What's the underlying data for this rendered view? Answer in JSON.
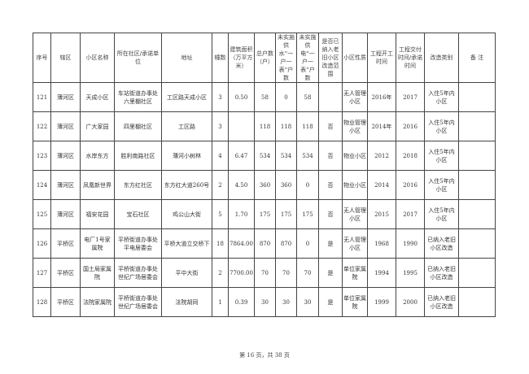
{
  "table": {
    "headers": [
      "序号",
      "辖区",
      "小区名称",
      "所在社区/承诺单位",
      "地址",
      "幢数",
      "建筑面积（万平方米）",
      "总户数（户）",
      "未实施供水“一户一表”户数",
      "未实施供电“一户一表”户数",
      "是否已纳入老旧小区改造范围",
      "小区性质",
      "工程开工时间",
      "工程交付时间/承诺时间",
      "改造类别",
      "备 注"
    ],
    "rows": [
      [
        "121",
        "薄河区",
        "天成小区",
        "车站街道办事处六里棚社区",
        "工区路天成小区",
        "3",
        "0.50",
        "58",
        "0",
        "58",
        "",
        "无人管理小区",
        "2016年",
        "2017",
        "入住5年内小区",
        ""
      ],
      [
        "122",
        "薄河区",
        "广大家园",
        "四里棚社区",
        "工区路",
        "3",
        "",
        "118",
        "118",
        "118",
        "否",
        "物业管理小区",
        "2014年",
        "2016",
        "入住5年内小区",
        ""
      ],
      [
        "123",
        "薄河区",
        "水岸东方",
        "胜利南路社区",
        "薄河小树林",
        "4",
        "6.47",
        "534",
        "534",
        "534",
        "否",
        "物业小区",
        "2012",
        "2018",
        "入住5年内小区",
        ""
      ],
      [
        "124",
        "薄河区",
        "凤凰新世界",
        "东方红社区",
        "东方红大道260号",
        "2",
        "4.50",
        "360",
        "360",
        "0",
        "否",
        "物业小区",
        "2014",
        "2016",
        "入住5年内小区",
        ""
      ],
      [
        "125",
        "薄河区",
        "福安花园",
        "宝石社区",
        "鸡公山大街",
        "5",
        "1.70",
        "175",
        "175",
        "175",
        "否",
        "无人管理小区",
        "2015",
        "2017",
        "入住5年内小区",
        ""
      ],
      [
        "126",
        "平桥区",
        "电厂1号家属院",
        "平桥街道办事处平电居委会",
        "平桥大道立交桥下",
        "18",
        "7864.00",
        "870",
        "870",
        "0",
        "是",
        "无人管理小区",
        "1968",
        "1990",
        "已纳入老旧小区改造",
        ""
      ],
      [
        "127",
        "平桥区",
        "国土局家属院",
        "平桥街道办事处世纪广场居委会",
        "平中大街",
        "2",
        "7700.00",
        "70",
        "70",
        "70",
        "是",
        "单位家属院",
        "1994",
        "1995",
        "已纳入老旧小区改造",
        ""
      ],
      [
        "128",
        "平桥区",
        "法院家属院",
        "平桥街道办事处世纪广场居委会",
        "法院胡同",
        "1",
        "0.39",
        "30",
        "30",
        "30",
        "是",
        "单位家属院",
        "1999",
        "2000",
        "已纳入老旧小区改造",
        ""
      ]
    ]
  },
  "footer": {
    "page_text": "第 16 页，共 38 页"
  }
}
